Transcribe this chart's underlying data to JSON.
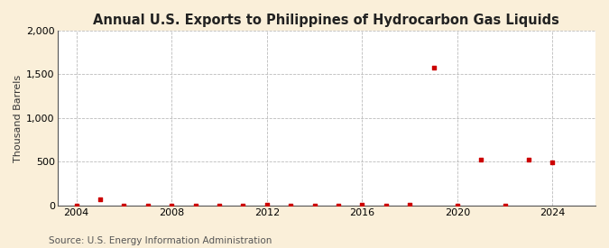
{
  "title": "Annual U.S. Exports to Philippines of Hydrocarbon Gas Liquids",
  "ylabel": "Thousand Barrels",
  "source": "Source: U.S. Energy Information Administration",
  "background_color": "#faefd9",
  "plot_bg_color": "#ffffff",
  "data": [
    [
      2004,
      0
    ],
    [
      2005,
      75
    ],
    [
      2006,
      0
    ],
    [
      2007,
      0
    ],
    [
      2008,
      0
    ],
    [
      2009,
      0
    ],
    [
      2010,
      0
    ],
    [
      2011,
      0
    ],
    [
      2012,
      5
    ],
    [
      2013,
      0
    ],
    [
      2014,
      0
    ],
    [
      2015,
      0
    ],
    [
      2016,
      15
    ],
    [
      2017,
      0
    ],
    [
      2018,
      10
    ],
    [
      2019,
      1580
    ],
    [
      2020,
      0
    ],
    [
      2021,
      530
    ],
    [
      2022,
      0
    ],
    [
      2023,
      530
    ],
    [
      2024,
      490
    ]
  ],
  "marker_color": "#cc0000",
  "marker_size": 3.5,
  "xlim": [
    2003.2,
    2025.8
  ],
  "ylim": [
    0,
    2000
  ],
  "yticks": [
    0,
    500,
    1000,
    1500,
    2000
  ],
  "xticks": [
    2004,
    2008,
    2012,
    2016,
    2020,
    2024
  ],
  "grid_color": "#bbbbbb",
  "grid_linestyle": "--",
  "title_fontsize": 10.5,
  "label_fontsize": 8,
  "tick_fontsize": 8,
  "source_fontsize": 7.5
}
